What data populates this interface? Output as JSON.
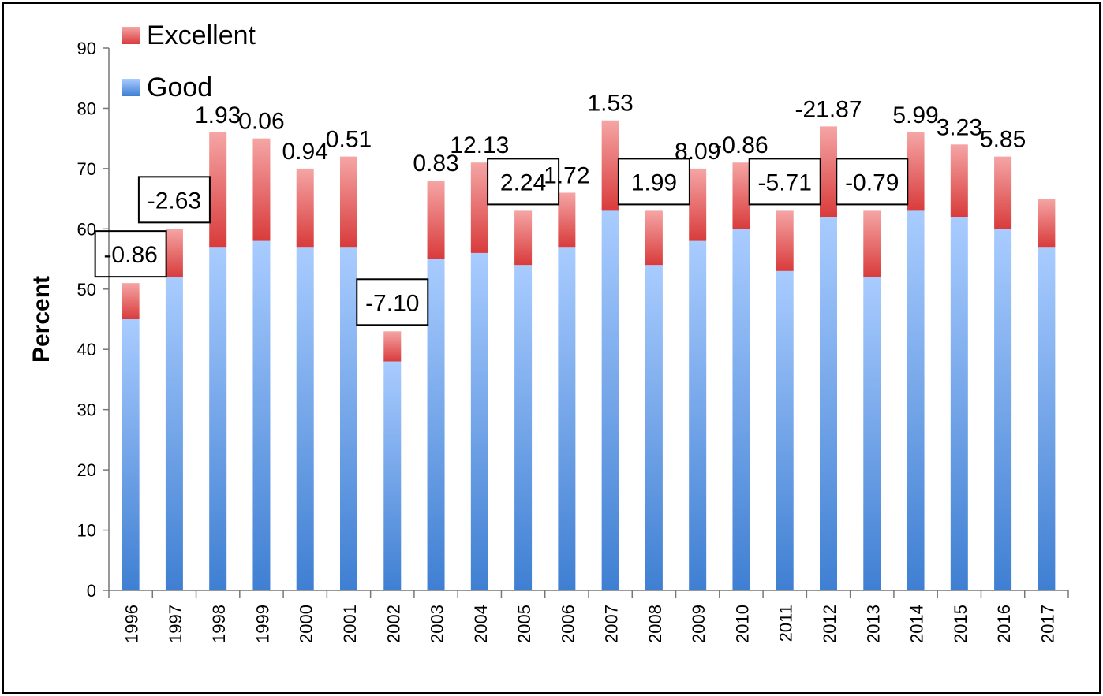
{
  "chart_data": {
    "type": "bar",
    "stacked": true,
    "ylabel": "Percent",
    "ylim": [
      0,
      90
    ],
    "yticks": [
      0,
      10,
      20,
      30,
      40,
      50,
      60,
      70,
      80,
      90
    ],
    "categories": [
      "1996",
      "1997",
      "1998",
      "1999",
      "2000",
      "2001",
      "2002",
      "2003",
      "2004",
      "2005",
      "2006",
      "2007",
      "2008",
      "2009",
      "2010",
      "2011",
      "2012",
      "2013",
      "2014",
      "2015",
      "2016",
      "2017"
    ],
    "series": [
      {
        "name": "Good",
        "color": "#5b93de",
        "values": [
          45,
          52,
          57,
          58,
          57,
          57,
          38,
          55,
          56,
          54,
          57,
          63,
          54,
          58,
          60,
          53,
          62,
          52,
          63,
          62,
          60,
          57
        ]
      },
      {
        "name": "Excellent",
        "color": "#e05a5a",
        "values": [
          6,
          8,
          19,
          17,
          13,
          15,
          5,
          13,
          15,
          9,
          9,
          15,
          9,
          12,
          11,
          10,
          15,
          11,
          13,
          12,
          12,
          8
        ]
      }
    ],
    "annotations": [
      {
        "category": "1996",
        "text": "-0.86",
        "boxed": true
      },
      {
        "category": "1997",
        "text": "-2.63",
        "boxed": true
      },
      {
        "category": "1998",
        "text": "1.93",
        "boxed": false
      },
      {
        "category": "1999",
        "text": "0.06",
        "boxed": false
      },
      {
        "category": "2000",
        "text": "0.94",
        "boxed": false
      },
      {
        "category": "2001",
        "text": "0.51",
        "boxed": false
      },
      {
        "category": "2002",
        "text": "-7.10",
        "boxed": true
      },
      {
        "category": "2003",
        "text": "0.83",
        "boxed": false
      },
      {
        "category": "2004",
        "text": "12.13",
        "boxed": false
      },
      {
        "category": "2005",
        "text": "2.24",
        "boxed": true
      },
      {
        "category": "2006",
        "text": "1.72",
        "boxed": false
      },
      {
        "category": "2007",
        "text": "1.53",
        "boxed": false
      },
      {
        "category": "2008",
        "text": "1.99",
        "boxed": true
      },
      {
        "category": "2009",
        "text": "8.09",
        "boxed": false
      },
      {
        "category": "2010",
        "text": "-0.86",
        "boxed": false
      },
      {
        "category": "2011",
        "text": "-5.71",
        "boxed": true
      },
      {
        "category": "2012",
        "text": "-21.87",
        "boxed": false
      },
      {
        "category": "2013",
        "text": "-0.79",
        "boxed": true
      },
      {
        "category": "2014",
        "text": "5.99",
        "boxed": false
      },
      {
        "category": "2015",
        "text": "3.23",
        "boxed": false
      },
      {
        "category": "2016",
        "text": "5.85",
        "boxed": false
      }
    ],
    "legend": {
      "position": "top-left",
      "entries": [
        "Excellent",
        "Good"
      ]
    },
    "grid": false
  }
}
